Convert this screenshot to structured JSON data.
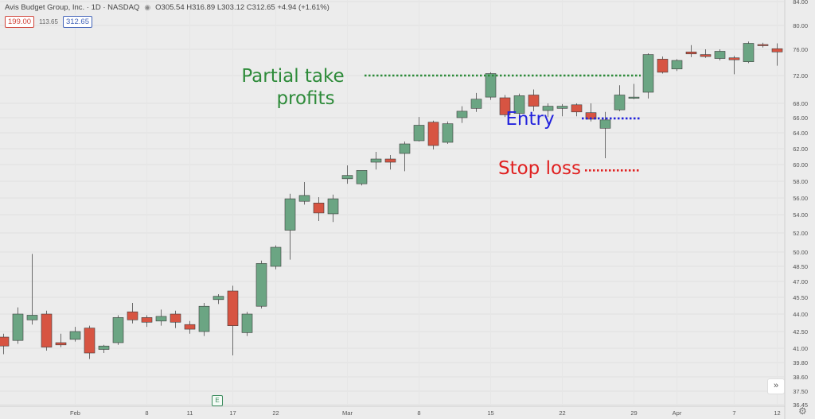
{
  "header": {
    "symbol_line": "Avis Budget Group, Inc. · 1D · NASDAQ",
    "ohlc_line": "O305.54 H316.89 L303.12 C312.65 +4.94 (+1.61%)",
    "sell_price": "199.00",
    "spread": "113.65",
    "buy_price": "312.65"
  },
  "icons": {
    "eye": "eye-icon",
    "settings": "gear-icon",
    "scroll": "double-chevron-right-icon",
    "earnings": "earnings-badge-icon"
  },
  "earnings_label": "E",
  "scroll_label": "»",
  "gear_label": "⚙",
  "colors": {
    "up": "#6ba583",
    "down": "#d75442",
    "green_annot": "#2e8b3a",
    "blue_annot": "#2222dd",
    "red_annot": "#e02020"
  },
  "chart_data": {
    "type": "candlestick",
    "y_ticks": [
      "84.00",
      "80.00",
      "76.00",
      "72.00",
      "68.00",
      "66.00",
      "64.00",
      "62.00",
      "60.00",
      "58.00",
      "56.00",
      "54.00",
      "52.00",
      "50.00",
      "48.50",
      "47.00",
      "45.50",
      "44.00",
      "42.50",
      "41.00",
      "39.80",
      "38.60",
      "37.50",
      "36.45"
    ],
    "x_ticks": [
      "Feb",
      "8",
      "11",
      "17",
      "22",
      "Mar",
      "8",
      "15",
      "22",
      "29",
      "Apr",
      "7",
      "12"
    ],
    "candles": [
      {
        "o": 42.0,
        "h": 42.3,
        "l": 40.5,
        "c": 41.2
      },
      {
        "o": 41.7,
        "h": 44.6,
        "l": 41.4,
        "c": 44.0
      },
      {
        "o": 43.5,
        "h": 49.8,
        "l": 43.1,
        "c": 43.9
      },
      {
        "o": 44.0,
        "h": 44.3,
        "l": 40.8,
        "c": 41.1
      },
      {
        "o": 41.5,
        "h": 42.3,
        "l": 41.1,
        "c": 41.3
      },
      {
        "o": 41.8,
        "h": 42.9,
        "l": 41.6,
        "c": 42.5
      },
      {
        "o": 42.8,
        "h": 43.0,
        "l": 40.1,
        "c": 40.6
      },
      {
        "o": 40.9,
        "h": 41.3,
        "l": 40.6,
        "c": 41.2
      },
      {
        "o": 41.5,
        "h": 43.9,
        "l": 41.3,
        "c": 43.7
      },
      {
        "o": 44.2,
        "h": 45.0,
        "l": 43.2,
        "c": 43.5
      },
      {
        "o": 43.7,
        "h": 43.9,
        "l": 42.9,
        "c": 43.3
      },
      {
        "o": 43.4,
        "h": 44.4,
        "l": 43.0,
        "c": 43.8
      },
      {
        "o": 44.0,
        "h": 44.3,
        "l": 42.8,
        "c": 43.3
      },
      {
        "o": 43.1,
        "h": 43.4,
        "l": 42.3,
        "c": 42.7
      },
      {
        "o": 42.5,
        "h": 45.0,
        "l": 42.1,
        "c": 44.7
      },
      {
        "o": 45.3,
        "h": 45.8,
        "l": 44.9,
        "c": 45.6
      },
      {
        "o": 46.1,
        "h": 46.6,
        "l": 40.4,
        "c": 43.0
      },
      {
        "o": 42.4,
        "h": 44.2,
        "l": 42.1,
        "c": 44.0
      },
      {
        "o": 44.7,
        "h": 49.1,
        "l": 44.5,
        "c": 48.8
      },
      {
        "o": 48.5,
        "h": 50.7,
        "l": 48.2,
        "c": 50.5
      },
      {
        "o": 52.3,
        "h": 56.5,
        "l": 49.2,
        "c": 55.9
      },
      {
        "o": 55.6,
        "h": 57.9,
        "l": 55.2,
        "c": 56.3
      },
      {
        "o": 55.4,
        "h": 56.1,
        "l": 53.3,
        "c": 54.2
      },
      {
        "o": 54.1,
        "h": 56.4,
        "l": 53.2,
        "c": 55.9
      },
      {
        "o": 58.3,
        "h": 59.9,
        "l": 57.7,
        "c": 58.7
      },
      {
        "o": 57.7,
        "h": 59.1,
        "l": 57.5,
        "c": 59.3
      },
      {
        "o": 60.3,
        "h": 61.6,
        "l": 59.4,
        "c": 60.7
      },
      {
        "o": 60.7,
        "h": 61.2,
        "l": 59.4,
        "c": 60.3
      },
      {
        "o": 61.4,
        "h": 62.9,
        "l": 59.2,
        "c": 62.6
      },
      {
        "o": 63.0,
        "h": 66.1,
        "l": 62.9,
        "c": 65.0
      },
      {
        "o": 65.4,
        "h": 65.6,
        "l": 61.9,
        "c": 62.4
      },
      {
        "o": 62.8,
        "h": 65.5,
        "l": 62.6,
        "c": 65.2
      },
      {
        "o": 66.0,
        "h": 67.6,
        "l": 65.3,
        "c": 66.9
      },
      {
        "o": 67.3,
        "h": 69.5,
        "l": 66.8,
        "c": 68.6
      },
      {
        "o": 68.9,
        "h": 72.5,
        "l": 68.5,
        "c": 72.3
      },
      {
        "o": 68.8,
        "h": 69.2,
        "l": 66.1,
        "c": 66.4
      },
      {
        "o": 66.6,
        "h": 69.4,
        "l": 65.0,
        "c": 69.1
      },
      {
        "o": 69.2,
        "h": 70.0,
        "l": 66.9,
        "c": 67.6
      },
      {
        "o": 67.0,
        "h": 68.0,
        "l": 66.1,
        "c": 67.6
      },
      {
        "o": 67.3,
        "h": 67.9,
        "l": 66.2,
        "c": 67.6
      },
      {
        "o": 67.8,
        "h": 68.0,
        "l": 66.2,
        "c": 66.8
      },
      {
        "o": 66.7,
        "h": 68.0,
        "l": 65.5,
        "c": 65.8
      },
      {
        "o": 64.6,
        "h": 66.8,
        "l": 60.8,
        "c": 65.7
      },
      {
        "o": 67.1,
        "h": 70.6,
        "l": 66.9,
        "c": 69.2
      },
      {
        "o": 68.8,
        "h": 70.8,
        "l": 68.6,
        "c": 68.9
      },
      {
        "o": 69.6,
        "h": 75.4,
        "l": 68.7,
        "c": 75.2
      },
      {
        "o": 74.5,
        "h": 74.9,
        "l": 72.3,
        "c": 72.5
      },
      {
        "o": 73.0,
        "h": 74.5,
        "l": 72.7,
        "c": 74.3
      },
      {
        "o": 75.6,
        "h": 76.7,
        "l": 74.8,
        "c": 75.3
      },
      {
        "o": 75.2,
        "h": 76.0,
        "l": 74.7,
        "c": 74.9
      },
      {
        "o": 74.6,
        "h": 76.0,
        "l": 74.3,
        "c": 75.7
      },
      {
        "o": 74.7,
        "h": 75.0,
        "l": 72.2,
        "c": 74.4
      },
      {
        "o": 74.1,
        "h": 77.3,
        "l": 73.9,
        "c": 77.0
      },
      {
        "o": 76.8,
        "h": 77.1,
        "l": 76.3,
        "c": 76.7
      },
      {
        "o": 76.1,
        "h": 77.0,
        "l": 73.5,
        "c": 75.6
      }
    ],
    "annotations": [
      {
        "text_lines": [
          "Partial take",
          "profits"
        ],
        "price": 72.0,
        "color": "green"
      },
      {
        "text_lines": [
          "Entry"
        ],
        "price": 65.9,
        "color": "blue"
      },
      {
        "text_lines": [
          "Stop loss"
        ],
        "price": 59.3,
        "color": "red"
      }
    ]
  }
}
